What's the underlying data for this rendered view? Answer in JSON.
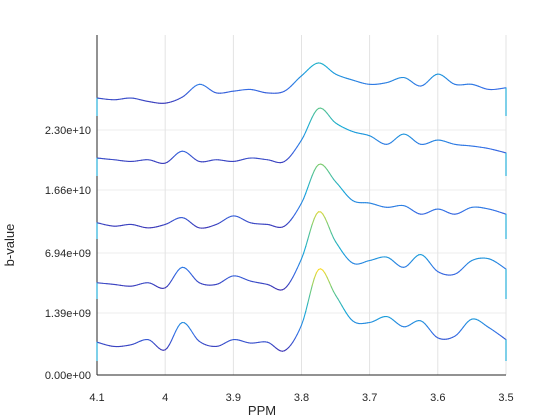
{
  "chart_data": {
    "type": "line",
    "style": "3d-waterfall-spectra",
    "xlabel": "PPM",
    "ylabel": "b-value",
    "x_reversed": true,
    "xlim": [
      4.1,
      3.5
    ],
    "xticks": [
      "4.1",
      "4",
      "3.9",
      "3.8",
      "3.7",
      "3.6",
      "3.5"
    ],
    "yticks": [
      "0.00e+00",
      "1.39e+09",
      "6.94e+09",
      "1.66e+10",
      "2.30e+10"
    ],
    "grid": true,
    "colormap": "parula",
    "series": [
      {
        "b_value": 0,
        "x": [
          4.1,
          4.075,
          4.05,
          4.025,
          4.0,
          3.975,
          3.95,
          3.925,
          3.9,
          3.875,
          3.85,
          3.825,
          3.8,
          3.775,
          3.75,
          3.725,
          3.7,
          3.675,
          3.65,
          3.625,
          3.6,
          3.575,
          3.55,
          3.525,
          3.5
        ],
        "y": [
          0.15,
          0.1,
          0.12,
          0.18,
          0.06,
          0.38,
          0.16,
          0.1,
          0.18,
          0.14,
          0.15,
          0.05,
          0.35,
          1.0,
          0.7,
          0.4,
          0.38,
          0.45,
          0.33,
          0.4,
          0.2,
          0.22,
          0.42,
          0.32,
          0.18
        ]
      },
      {
        "b_value": 1390000000,
        "x": [
          4.1,
          4.075,
          4.05,
          4.025,
          4.0,
          3.975,
          3.95,
          3.925,
          3.9,
          3.875,
          3.85,
          3.825,
          3.8,
          3.775,
          3.75,
          3.725,
          3.7,
          3.675,
          3.65,
          3.625,
          3.6,
          3.575,
          3.55,
          3.525,
          3.5
        ],
        "y": [
          0.12,
          0.1,
          0.08,
          0.12,
          0.06,
          0.3,
          0.12,
          0.1,
          0.2,
          0.14,
          0.1,
          0.05,
          0.4,
          0.95,
          0.6,
          0.35,
          0.38,
          0.42,
          0.3,
          0.45,
          0.25,
          0.22,
          0.38,
          0.4,
          0.28
        ]
      },
      {
        "b_value": 6940000000,
        "x": [
          4.1,
          4.075,
          4.05,
          4.025,
          4.0,
          3.975,
          3.95,
          3.925,
          3.9,
          3.875,
          3.85,
          3.825,
          3.8,
          3.775,
          3.75,
          3.725,
          3.7,
          3.675,
          3.65,
          3.625,
          3.6,
          3.575,
          3.55,
          3.525,
          3.5
        ],
        "y": [
          0.12,
          0.08,
          0.1,
          0.06,
          0.1,
          0.18,
          0.06,
          0.1,
          0.2,
          0.12,
          0.1,
          0.08,
          0.35,
          0.8,
          0.6,
          0.38,
          0.35,
          0.3,
          0.32,
          0.22,
          0.28,
          0.22,
          0.3,
          0.28,
          0.22
        ]
      },
      {
        "b_value": 16600000000,
        "x": [
          4.1,
          4.075,
          4.05,
          4.025,
          4.0,
          3.975,
          3.95,
          3.925,
          3.9,
          3.875,
          3.85,
          3.825,
          3.8,
          3.775,
          3.75,
          3.725,
          3.7,
          3.675,
          3.65,
          3.625,
          3.6,
          3.575,
          3.55,
          3.525,
          3.5
        ],
        "y": [
          0.14,
          0.12,
          0.1,
          0.12,
          0.08,
          0.22,
          0.1,
          0.12,
          0.1,
          0.14,
          0.12,
          0.1,
          0.35,
          0.72,
          0.55,
          0.45,
          0.4,
          0.3,
          0.42,
          0.3,
          0.35,
          0.3,
          0.28,
          0.25,
          0.2
        ]
      },
      {
        "b_value": 23000000000,
        "x": [
          4.1,
          4.075,
          4.05,
          4.025,
          4.0,
          3.975,
          3.95,
          3.925,
          3.9,
          3.875,
          3.85,
          3.825,
          3.8,
          3.775,
          3.75,
          3.725,
          3.7,
          3.675,
          3.65,
          3.625,
          3.6,
          3.575,
          3.55,
          3.525,
          3.5
        ],
        "y": [
          0.14,
          0.12,
          0.14,
          0.1,
          0.08,
          0.15,
          0.3,
          0.2,
          0.22,
          0.24,
          0.2,
          0.22,
          0.4,
          0.55,
          0.42,
          0.35,
          0.3,
          0.32,
          0.38,
          0.28,
          0.42,
          0.3,
          0.3,
          0.24,
          0.26
        ]
      }
    ]
  }
}
